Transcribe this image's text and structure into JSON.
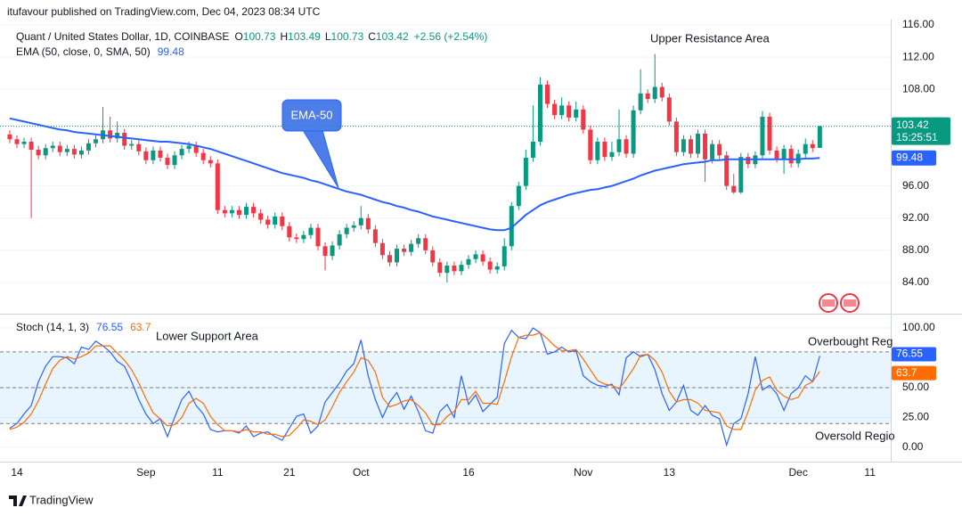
{
  "header": "itufavour published on TradingView.com, Dec 04, 2023 08:34 UTC",
  "footer": "TradingView",
  "chart_data": [
    {
      "type": "candlestick",
      "symbol": "Quant / United States Dollar, 1D, COINBASE",
      "legend_labels": [
        "O",
        "H",
        "L",
        "C"
      ],
      "change": "+2.56 (+2.54%)",
      "countdown": "15:25:51",
      "up_color": "#089981",
      "down_color": "#f23645",
      "xlim": [
        -1.36,
        122.9
      ],
      "ylim": [
        80.12,
        116.67
      ],
      "yticks": [
        {
          "value": 84,
          "label": "84.00"
        },
        {
          "value": 88,
          "label": "88.00"
        },
        {
          "value": 92,
          "label": "92.00"
        },
        {
          "value": 96,
          "label": "96.00"
        },
        {
          "value": 108,
          "label": "108.00"
        },
        {
          "value": 112,
          "label": "112.00"
        },
        {
          "value": 116,
          "label": "116.00"
        }
      ],
      "annotations": [
        "Upper Resistance Area",
        "EMA-50"
      ],
      "ohlc": [
        [
          102.4,
          102.9,
          101.3,
          101.8
        ],
        [
          101.8,
          102.3,
          100.7,
          101.2
        ],
        [
          101.2,
          102.0,
          100.7,
          101.5
        ],
        [
          101.5,
          102.0,
          92.0,
          100.5
        ],
        [
          100.5,
          101.0,
          99.3,
          99.8
        ],
        [
          99.8,
          101.2,
          99.3,
          100.7
        ],
        [
          100.7,
          101.5,
          100.2,
          101.0
        ],
        [
          101.0,
          101.5,
          99.7,
          100.2
        ],
        [
          100.2,
          101.1,
          99.7,
          100.6
        ],
        [
          100.6,
          101.1,
          99.4,
          99.9
        ],
        [
          99.9,
          100.9,
          99.4,
          100.4
        ],
        [
          100.4,
          101.8,
          99.9,
          101.3
        ],
        [
          101.3,
          102.3,
          100.8,
          101.8
        ],
        [
          101.8,
          105.8,
          101.3,
          102.9
        ],
        [
          102.9,
          104.6,
          101.4,
          101.9
        ],
        [
          101.9,
          104.0,
          101.4,
          102.6
        ],
        [
          102.6,
          103.1,
          100.5,
          101.0
        ],
        [
          101.0,
          101.7,
          100.5,
          101.2
        ],
        [
          101.2,
          101.7,
          99.8,
          100.3
        ],
        [
          100.3,
          100.8,
          98.7,
          99.2
        ],
        [
          99.2,
          100.9,
          98.7,
          100.4
        ],
        [
          100.4,
          100.9,
          99.0,
          99.5
        ],
        [
          99.5,
          100.0,
          98.1,
          98.6
        ],
        [
          98.6,
          100.3,
          98.1,
          99.8
        ],
        [
          99.8,
          101.1,
          99.3,
          100.6
        ],
        [
          100.6,
          101.5,
          100.1,
          101.0
        ],
        [
          101.0,
          101.5,
          99.6,
          100.1
        ],
        [
          100.1,
          100.6,
          98.7,
          99.2
        ],
        [
          99.2,
          99.7,
          98.3,
          98.8
        ],
        [
          98.8,
          99.3,
          92.5,
          93.0
        ],
        [
          93.0,
          93.5,
          92.1,
          92.6
        ],
        [
          92.6,
          93.5,
          92.1,
          93.0
        ],
        [
          93.0,
          93.5,
          91.9,
          92.4
        ],
        [
          92.4,
          93.9,
          91.9,
          93.4
        ],
        [
          93.4,
          93.9,
          92.1,
          92.6
        ],
        [
          92.6,
          93.1,
          91.3,
          91.8
        ],
        [
          91.8,
          92.3,
          90.7,
          91.2
        ],
        [
          91.2,
          92.7,
          90.7,
          92.2
        ],
        [
          92.2,
          92.7,
          90.5,
          91.0
        ],
        [
          91.0,
          91.5,
          89.1,
          89.6
        ],
        [
          89.6,
          90.1,
          88.9,
          89.4
        ],
        [
          89.4,
          90.4,
          88.9,
          89.9
        ],
        [
          89.9,
          91.3,
          89.4,
          90.8
        ],
        [
          90.8,
          91.3,
          88.0,
          88.5
        ],
        [
          88.5,
          89.0,
          85.5,
          87.3
        ],
        [
          87.3,
          89.1,
          86.8,
          88.6
        ],
        [
          88.6,
          90.5,
          88.1,
          90.0
        ],
        [
          90.0,
          91.3,
          89.5,
          90.8
        ],
        [
          90.8,
          91.6,
          90.3,
          91.1
        ],
        [
          91.1,
          93.5,
          90.6,
          92.0
        ],
        [
          92.0,
          92.5,
          90.1,
          90.6
        ],
        [
          90.6,
          91.1,
          88.4,
          88.9
        ],
        [
          88.9,
          89.4,
          86.9,
          87.4
        ],
        [
          87.4,
          87.9,
          86.0,
          86.5
        ],
        [
          86.5,
          88.7,
          86.0,
          88.2
        ],
        [
          88.2,
          88.7,
          87.3,
          87.8
        ],
        [
          87.8,
          89.3,
          87.3,
          88.8
        ],
        [
          88.8,
          90.0,
          88.3,
          89.5
        ],
        [
          89.5,
          90.0,
          87.5,
          88.0
        ],
        [
          88.0,
          88.5,
          86.0,
          86.5
        ],
        [
          86.5,
          87.0,
          84.7,
          85.2
        ],
        [
          85.2,
          86.6,
          84.0,
          86.1
        ],
        [
          86.1,
          86.6,
          84.9,
          85.4
        ],
        [
          85.4,
          86.7,
          84.9,
          86.2
        ],
        [
          86.2,
          87.4,
          85.7,
          86.9
        ],
        [
          86.9,
          88.0,
          86.4,
          87.5
        ],
        [
          87.5,
          88.0,
          86.1,
          86.6
        ],
        [
          86.6,
          87.1,
          85.1,
          85.6
        ],
        [
          85.6,
          86.5,
          85.1,
          86.0
        ],
        [
          86.0,
          89.5,
          85.5,
          88.5
        ],
        [
          88.5,
          94.0,
          88.0,
          93.5
        ],
        [
          93.5,
          96.5,
          93.0,
          96.0
        ],
        [
          96.0,
          100.5,
          95.5,
          99.5
        ],
        [
          99.5,
          106.0,
          99.0,
          101.5
        ],
        [
          101.5,
          109.5,
          101.0,
          108.6
        ],
        [
          108.6,
          109.1,
          105.7,
          106.2
        ],
        [
          106.2,
          106.7,
          104.3,
          104.8
        ],
        [
          104.8,
          107.0,
          104.3,
          106.0
        ],
        [
          106.0,
          106.5,
          104.0,
          104.5
        ],
        [
          104.5,
          106.5,
          104.0,
          105.5
        ],
        [
          105.5,
          106.0,
          102.5,
          103.0
        ],
        [
          103.0,
          103.5,
          98.7,
          99.2
        ],
        [
          99.2,
          102.0,
          98.7,
          101.5
        ],
        [
          101.5,
          102.0,
          99.1,
          99.6
        ],
        [
          99.6,
          101.5,
          99.1,
          100.2
        ],
        [
          100.2,
          105.5,
          99.7,
          101.8
        ],
        [
          101.8,
          102.3,
          99.5,
          100.0
        ],
        [
          100.0,
          106.0,
          99.5,
          105.4
        ],
        [
          105.4,
          110.5,
          104.9,
          107.5
        ],
        [
          107.5,
          108.0,
          106.3,
          106.8
        ],
        [
          106.8,
          112.4,
          106.3,
          108.3
        ],
        [
          108.3,
          108.8,
          106.5,
          107.0
        ],
        [
          107.0,
          107.5,
          103.5,
          104.0
        ],
        [
          104.0,
          104.5,
          99.7,
          100.2
        ],
        [
          100.2,
          102.3,
          99.7,
          101.8
        ],
        [
          101.8,
          102.3,
          99.5,
          100.0
        ],
        [
          100.0,
          103.0,
          99.5,
          102.5
        ],
        [
          102.5,
          103.0,
          96.5,
          99.3
        ],
        [
          99.3,
          101.7,
          98.8,
          101.2
        ],
        [
          101.2,
          101.7,
          99.3,
          99.8
        ],
        [
          99.8,
          100.3,
          95.5,
          96.0
        ],
        [
          96.0,
          97.5,
          95.0,
          95.2
        ],
        [
          95.2,
          100.1,
          95.0,
          99.6
        ],
        [
          99.6,
          100.1,
          98.2,
          98.7
        ],
        [
          98.7,
          100.3,
          98.2,
          99.8
        ],
        [
          99.8,
          105.3,
          99.3,
          104.6
        ],
        [
          104.6,
          105.1,
          99.9,
          100.4
        ],
        [
          100.4,
          100.9,
          98.9,
          99.4
        ],
        [
          99.4,
          101.1,
          97.5,
          100.6
        ],
        [
          100.6,
          101.1,
          98.3,
          98.8
        ],
        [
          98.8,
          100.5,
          98.3,
          100.0
        ],
        [
          100.0,
          101.9,
          99.5,
          101.2
        ],
        [
          101.2,
          101.7,
          100.2,
          100.7
        ],
        [
          100.73,
          103.49,
          100.73,
          103.42
        ]
      ],
      "overlay": {
        "name": "EMA (50, close, 0, SMA, 50)",
        "color": "#2962ff",
        "values": [
          104.4,
          104.2,
          104.0,
          103.8,
          103.6,
          103.4,
          103.2,
          103.0,
          102.9,
          102.7,
          102.6,
          102.5,
          102.4,
          102.3,
          102.2,
          102.1,
          102.0,
          101.9,
          101.8,
          101.7,
          101.6,
          101.5,
          101.5,
          101.4,
          101.3,
          101.2,
          101.0,
          100.8,
          100.6,
          100.3,
          100.0,
          99.7,
          99.4,
          99.1,
          98.8,
          98.5,
          98.2,
          97.9,
          97.6,
          97.4,
          97.2,
          97.0,
          96.7,
          96.5,
          96.2,
          95.9,
          95.6,
          95.3,
          95.1,
          94.9,
          94.6,
          94.3,
          94.0,
          93.8,
          93.5,
          93.3,
          93.0,
          92.8,
          92.5,
          92.2,
          92.0,
          91.8,
          91.6,
          91.4,
          91.2,
          91.0,
          90.8,
          90.6,
          90.5,
          90.5,
          90.8,
          91.6,
          92.4,
          93.0,
          93.6,
          94.0,
          94.3,
          94.6,
          94.9,
          95.1,
          95.3,
          95.5,
          95.6,
          95.8,
          96.0,
          96.3,
          96.6,
          96.9,
          97.3,
          97.6,
          97.9,
          98.1,
          98.3,
          98.5,
          98.7,
          98.8,
          98.9,
          99.0,
          99.2,
          99.2,
          99.3,
          99.3,
          99.3,
          99.3,
          99.3,
          99.3,
          99.3,
          99.3,
          99.3,
          99.3,
          99.3,
          99.4,
          99.4,
          99.48
        ]
      }
    },
    {
      "type": "line",
      "title": "Stoch (14, 1, 3)",
      "xlim": [
        -1.36,
        122.9
      ],
      "ylim": [
        -11.9,
        111.2
      ],
      "yticks": [
        {
          "value": 0,
          "label": "0.00"
        },
        {
          "value": 25,
          "label": "25.00"
        },
        {
          "value": 50,
          "label": "50.00"
        },
        {
          "value": 100,
          "label": "100.00"
        }
      ],
      "bands": [
        20,
        50,
        80
      ],
      "xticks": [
        {
          "value": 1,
          "label": "14"
        },
        {
          "value": 19,
          "label": "Sep"
        },
        {
          "value": 29,
          "label": "11"
        },
        {
          "value": 39,
          "label": "21"
        },
        {
          "value": 49,
          "label": "Oct"
        },
        {
          "value": 64,
          "label": "16"
        },
        {
          "value": 80,
          "label": "Nov"
        },
        {
          "value": 92,
          "label": "13"
        },
        {
          "value": 110,
          "label": "Dec"
        },
        {
          "value": 120,
          "label": "11"
        }
      ],
      "annotations": [
        "Lower Support Area",
        "Overbought Reg",
        "Oversold Regio"
      ],
      "series": [
        {
          "color": "#2962ff",
          "values": [
            16,
            20,
            28,
            35,
            55,
            68,
            76,
            76,
            75,
            70,
            84,
            82,
            89,
            85,
            80,
            72,
            68,
            55,
            40,
            28,
            20,
            24,
            9,
            25,
            40,
            47,
            35,
            28,
            15,
            13,
            14,
            14,
            12,
            18,
            9,
            12,
            13,
            9,
            6,
            16,
            26,
            28,
            12,
            18,
            38,
            46,
            54,
            64,
            70,
            90,
            60,
            40,
            25,
            38,
            46,
            32,
            43,
            30,
            14,
            12,
            30,
            36,
            25,
            60,
            36,
            44,
            30,
            36,
            42,
            87,
            98,
            92,
            91,
            100,
            96,
            78,
            80,
            84,
            80,
            81,
            60,
            55,
            52,
            51,
            53,
            44,
            75,
            80,
            76,
            78,
            65,
            45,
            31,
            38,
            52,
            31,
            27,
            35,
            27,
            24,
            2,
            20,
            24,
            45,
            76,
            48,
            52,
            45,
            31,
            45,
            50,
            60,
            55,
            76.55
          ]
        },
        {
          "color": "#ff6d00",
          "values": [
            15,
            17,
            21,
            28,
            39,
            53,
            66,
            73,
            76,
            74,
            76,
            79,
            85,
            85,
            85,
            79,
            73,
            65,
            54,
            41,
            29,
            24,
            18,
            19,
            25,
            37,
            41,
            37,
            26,
            19,
            14,
            14,
            13,
            15,
            13,
            13,
            11,
            11,
            9,
            10,
            16,
            23,
            22,
            19,
            23,
            34,
            46,
            55,
            63,
            75,
            73,
            63,
            42,
            34,
            36,
            39,
            40,
            35,
            29,
            19,
            19,
            26,
            30,
            40,
            40,
            47,
            37,
            37,
            36,
            55,
            76,
            92,
            94,
            94,
            96,
            91,
            85,
            81,
            81,
            82,
            74,
            65,
            56,
            53,
            52,
            49,
            57,
            66,
            77,
            78,
            73,
            63,
            47,
            38,
            40,
            40,
            37,
            31,
            30,
            29,
            18,
            15,
            15,
            30,
            48,
            56,
            59,
            48,
            43,
            40,
            42,
            52,
            55,
            63.7
          ]
        }
      ]
    }
  ]
}
